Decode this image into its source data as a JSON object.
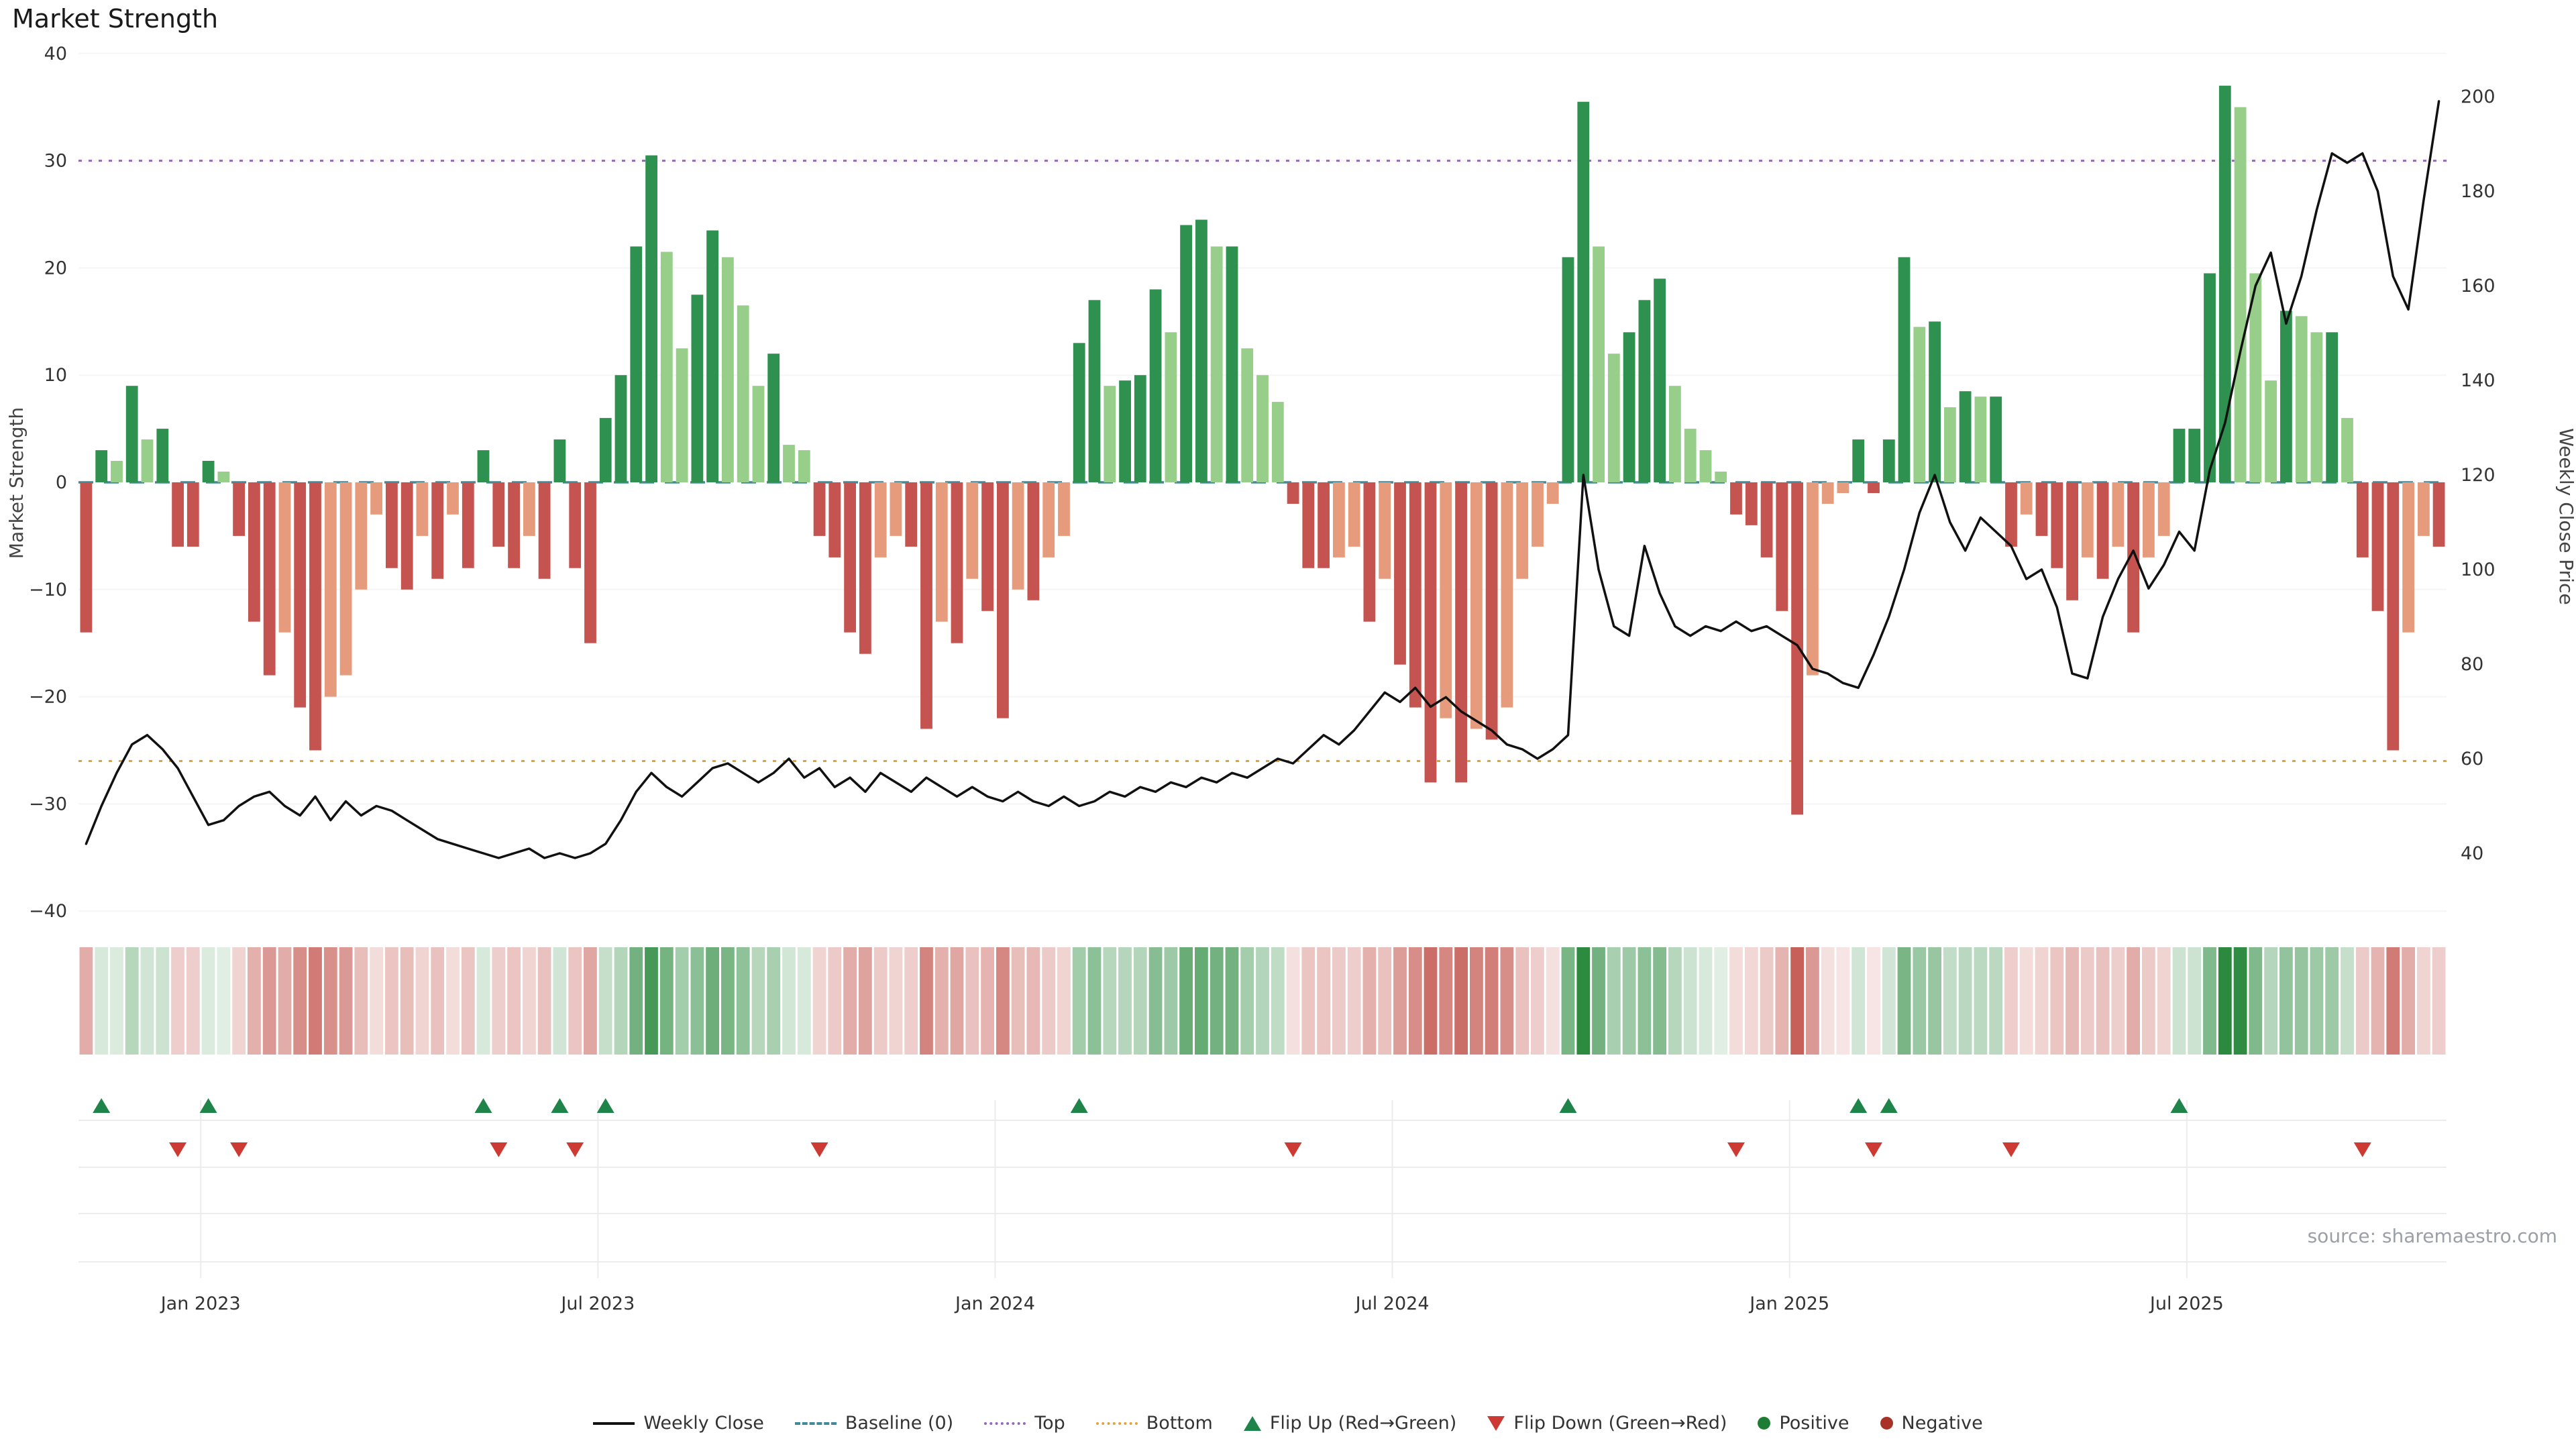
{
  "title": "Market Strength",
  "source": "source: sharemaestro.com",
  "axes": {
    "left_label": "Market Strength",
    "right_label": "Weekly Close Price",
    "left_ticks": [
      {
        "v": -40,
        "label": "−40"
      },
      {
        "v": -30,
        "label": "−30"
      },
      {
        "v": -20,
        "label": "−20"
      },
      {
        "v": -10,
        "label": "−10"
      },
      {
        "v": 0,
        "label": "0"
      },
      {
        "v": 10,
        "label": "10"
      },
      {
        "v": 20,
        "label": "20"
      },
      {
        "v": 30,
        "label": "30"
      },
      {
        "v": 40,
        "label": "40"
      }
    ],
    "right_ticks": [
      40,
      60,
      80,
      100,
      120,
      140,
      160,
      180,
      200
    ],
    "x_ticks": [
      {
        "label": "Jan 2023",
        "week": 8
      },
      {
        "label": "Jul 2023",
        "week": 34
      },
      {
        "label": "Jan 2024",
        "week": 60
      },
      {
        "label": "Jul 2024",
        "week": 86
      },
      {
        "label": "Jan 2025",
        "week": 112
      },
      {
        "label": "Jul 2025",
        "week": 138
      }
    ]
  },
  "chart_data": {
    "type": "bar+line",
    "frequency": "weekly",
    "x_start": "2022-11-07",
    "baseline": 0,
    "top": 30,
    "bottom": -26,
    "left_ylim": [
      -40,
      40
    ],
    "right_ylim": [
      40,
      200
    ],
    "strength": [
      -14,
      3,
      2,
      9,
      4,
      5,
      -6,
      -6,
      2,
      1,
      -5,
      -13,
      -18,
      -14,
      -21,
      -25,
      -20,
      -18,
      -10,
      -3,
      -8,
      -10,
      -5,
      -9,
      -3,
      -8,
      3,
      -6,
      -8,
      -5,
      -9,
      4,
      -8,
      -15,
      6,
      10,
      22,
      30.5,
      21.5,
      12.5,
      17.5,
      23.5,
      21,
      16.5,
      9,
      12,
      3.5,
      3,
      -5,
      -7,
      -14,
      -16,
      -7,
      -5,
      -6,
      -23,
      -13,
      -15,
      -9,
      -12,
      -22,
      -10,
      -11,
      -7,
      -5,
      13,
      17,
      9,
      9.5,
      10,
      18,
      14,
      24,
      24.5,
      22,
      22,
      12.5,
      10,
      7.5,
      -2,
      -8,
      -8,
      -7,
      -6,
      -13,
      -9,
      -17,
      -21,
      -28,
      -22,
      -28,
      -23,
      -24,
      -21,
      -9,
      -6,
      -2,
      21,
      35.5,
      22,
      12,
      14,
      17,
      19,
      9,
      5,
      3,
      1,
      -3,
      -4,
      -7,
      -12,
      -31,
      -18,
      -2,
      -1,
      4,
      -1,
      4,
      21,
      14.5,
      15,
      7,
      8.5,
      8,
      8,
      -6,
      -3,
      -5,
      -8,
      -11,
      -7,
      -9,
      -6,
      -14,
      -7,
      -5,
      5,
      5,
      19.5,
      37,
      35,
      19.5,
      9.5,
      16,
      15.5,
      14,
      14,
      6,
      -7,
      -12,
      -25,
      -14,
      -5,
      -6
    ],
    "weekly_close": [
      42,
      50,
      57,
      63,
      65,
      62,
      58,
      52,
      46,
      47,
      50,
      52,
      53,
      50,
      48,
      52,
      47,
      51,
      48,
      50,
      49,
      47,
      45,
      43,
      42,
      41,
      40,
      39,
      40,
      41,
      39,
      40,
      39,
      40,
      42,
      47,
      53,
      57,
      54,
      52,
      55,
      58,
      59,
      57,
      55,
      57,
      60,
      56,
      58,
      54,
      56,
      53,
      57,
      55,
      53,
      56,
      54,
      52,
      54,
      52,
      51,
      53,
      51,
      50,
      52,
      50,
      51,
      53,
      52,
      54,
      53,
      55,
      54,
      56,
      55,
      57,
      56,
      58,
      60,
      59,
      62,
      65,
      63,
      66,
      70,
      74,
      72,
      75,
      71,
      73,
      70,
      68,
      66,
      63,
      62,
      60,
      62,
      65,
      120,
      100,
      88,
      86,
      105,
      95,
      88,
      86,
      88,
      87,
      89,
      87,
      88,
      86,
      84,
      79,
      78,
      76,
      75,
      82,
      90,
      100,
      112,
      120,
      110,
      104,
      111,
      108,
      105,
      98,
      100,
      92,
      78,
      77,
      90,
      98,
      104,
      96,
      101,
      108,
      104,
      121,
      131,
      146,
      160,
      167,
      152,
      162,
      176,
      188,
      186,
      188,
      180,
      162,
      155,
      178,
      199
    ]
  },
  "colors": {
    "bar_pos_dark": "#2e9150",
    "bar_pos_light": "#97ce89",
    "bar_neg_dark": "#c5534f",
    "bar_neg_light": "#e79b7d",
    "baseline": "#418a9b",
    "top": "#9467bd",
    "bottom": "#e0a43c",
    "line": "#111111",
    "heat_pos": "#2b8a3e",
    "heat_neg": "#bf4a42",
    "flip_up": "#1e8449",
    "flip_down": "#cc3a33",
    "positive_dot": "#1e7d34",
    "negative_dot": "#a93226"
  },
  "legend": [
    {
      "label": "Weekly Close",
      "type": "line",
      "color": "#111111",
      "icon": "weekly-close-line-sample"
    },
    {
      "label": "Baseline (0)",
      "type": "dashed",
      "color": "#418a9b",
      "icon": "baseline-dash-sample"
    },
    {
      "label": "Top",
      "type": "dotted",
      "color": "#9467bd",
      "icon": "top-dotted-sample"
    },
    {
      "label": "Bottom",
      "type": "dotted",
      "color": "#e0a43c",
      "icon": "bottom-dotted-sample"
    },
    {
      "label": "Flip Up (Red→Green)",
      "type": "triangle-up",
      "color": "#1e8449",
      "icon": "flip-up-icon"
    },
    {
      "label": "Flip Down (Green→Red)",
      "type": "triangle-down",
      "color": "#cc3a33",
      "icon": "flip-down-icon"
    },
    {
      "label": "Positive",
      "type": "dot",
      "color": "#1e7d34",
      "icon": "positive-dot-icon"
    },
    {
      "label": "Negative",
      "type": "dot",
      "color": "#a93226",
      "icon": "negative-dot-icon"
    }
  ]
}
